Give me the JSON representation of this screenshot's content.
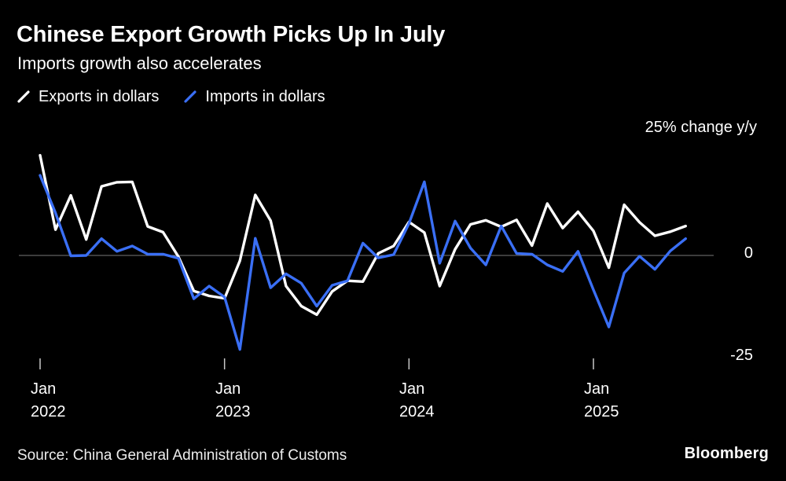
{
  "header": {
    "title": "Chinese Export Growth Picks Up In July",
    "subtitle": "Imports growth also accelerates"
  },
  "legend": [
    {
      "label": "Exports in dollars",
      "color": "#ffffff"
    },
    {
      "label": "Imports in dollars",
      "color": "#3A6FF5"
    }
  ],
  "axis": {
    "top_label": "25% change y/y",
    "right_ticks": [
      "0",
      "-25"
    ]
  },
  "xticks": [
    {
      "month": "Jan",
      "year": "2022"
    },
    {
      "month": "Jan",
      "year": "2023"
    },
    {
      "month": "Jan",
      "year": "2024"
    },
    {
      "month": "Jan",
      "year": "2025"
    }
  ],
  "footer": {
    "source": "Source: China General Administration of Customs",
    "brand": "Bloomberg"
  },
  "colors": {
    "background": "#000000",
    "gridline": "#787878",
    "axis_tick": "#c8c8c8",
    "exports": "#ffffff",
    "imports": "#3A6FF5"
  },
  "chart_data": {
    "type": "line",
    "title": "Chinese Export Growth Picks Up In July",
    "subtitle": "Imports growth also accelerates",
    "ylabel": "% change y/y",
    "ylim": [
      -30,
      30
    ],
    "yticks": [
      25,
      0,
      -25
    ],
    "grid": "zero-line-only",
    "legend_position": "top-left",
    "x_tick_labels": [
      "Jan 2022",
      "Jan 2023",
      "Jan 2024",
      "Jan 2025"
    ],
    "x": [
      "Jan 2022",
      "Feb 2022",
      "Mar 2022",
      "Apr 2022",
      "May 2022",
      "Jun 2022",
      "Jul 2022",
      "Aug 2022",
      "Sep 2022",
      "Oct 2022",
      "Nov 2022",
      "Dec 2022",
      "Jan 2023",
      "Feb 2023",
      "Mar 2023",
      "Apr 2023",
      "May 2023",
      "Jun 2023",
      "Jul 2023",
      "Aug 2023",
      "Sep 2023",
      "Oct 2023",
      "Nov 2023",
      "Dec 2023",
      "Jan 2024",
      "Feb 2024",
      "Mar 2024",
      "Apr 2024",
      "May 2024",
      "Jun 2024",
      "Jul 2024",
      "Aug 2024",
      "Sep 2024",
      "Oct 2024",
      "Nov 2024",
      "Dec 2024",
      "Jan 2025",
      "Feb 2025",
      "Mar 2025",
      "Apr 2025",
      "May 2025",
      "Jun 2025",
      "Jul 2025"
    ],
    "series": [
      {
        "name": "Exports in dollars",
        "color": "#ffffff",
        "values": [
          24.5,
          6.3,
          14.7,
          3.9,
          16.9,
          17.9,
          18.0,
          7.1,
          5.7,
          -0.3,
          -8.7,
          -9.9,
          -10.5,
          -1.3,
          14.8,
          8.5,
          -7.5,
          -12.4,
          -14.5,
          -8.8,
          -6.2,
          -6.4,
          0.5,
          2.3,
          8.2,
          5.6,
          -7.5,
          1.5,
          7.6,
          8.6,
          7.0,
          8.7,
          2.4,
          12.7,
          6.7,
          10.7,
          6.0,
          -3.0,
          12.4,
          8.1,
          4.8,
          5.8,
          7.2
        ]
      },
      {
        "name": "Imports in dollars",
        "color": "#3A6FF5",
        "values": [
          19.6,
          10.4,
          -0.1,
          0.0,
          4.1,
          1.0,
          2.3,
          0.3,
          0.3,
          -0.7,
          -10.6,
          -7.5,
          -10.2,
          -23.0,
          4.2,
          -7.9,
          -4.5,
          -6.8,
          -12.4,
          -7.3,
          -6.2,
          3.0,
          -0.6,
          0.2,
          7.8,
          18.0,
          -1.9,
          8.4,
          1.8,
          -2.3,
          7.2,
          0.5,
          0.3,
          -2.3,
          -3.9,
          1.0,
          -8.4,
          -17.5,
          -4.3,
          -0.2,
          -3.4,
          1.1,
          4.1
        ]
      }
    ],
    "source": "Source: China General Administration of Customs"
  }
}
